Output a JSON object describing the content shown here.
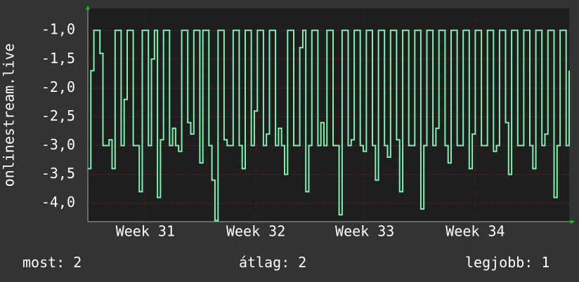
{
  "chart_data": {
    "type": "line",
    "y_label": "onlinestream.live",
    "series": [
      {
        "color": "#7ef0b0",
        "values": [
          -3.4,
          -1.7,
          -1,
          -1,
          -1.4,
          -3,
          -3,
          -2.9,
          -3.4,
          -1,
          -1,
          -3,
          -2.2,
          -1,
          -1,
          -3,
          -3,
          -3.8,
          -1,
          -1,
          -3,
          -1.5,
          -1,
          -3.9,
          -2.9,
          -1,
          -1,
          -3,
          -2.7,
          -3,
          -3.1,
          -1,
          -1,
          -2.6,
          -2.8,
          -1,
          -1,
          -3.3,
          -1,
          -1,
          -3,
          -3.6,
          -4.3,
          -1,
          -1,
          -2.9,
          -3,
          -3,
          -1,
          -1,
          -3,
          -3.4,
          -1,
          -1,
          -3,
          -2.4,
          -1,
          -1,
          -3,
          -2.8,
          -1,
          -1,
          -3,
          -2.7,
          -3,
          -3.5,
          -1,
          -1,
          -3,
          -3,
          -1.3,
          -1,
          -3.8,
          -3,
          -1,
          -1,
          -3,
          -2.6,
          -3,
          -1,
          -1,
          -3,
          -3,
          -4.2,
          -1,
          -1,
          -3,
          -2.9,
          -1,
          -1,
          -3,
          -3.1,
          -1,
          -1,
          -3,
          -3.6,
          -1,
          -1,
          -3,
          -3.2,
          -1,
          -1,
          -2.9,
          -3.8,
          -1,
          -1,
          -3,
          -3,
          -1,
          -1,
          -4.1,
          -3,
          -1,
          -1,
          -3,
          -2.7,
          -1,
          -1,
          -3,
          -3.3,
          -1,
          -1,
          -3,
          -3,
          -1,
          -1,
          -3.4,
          -2.8,
          -1,
          -1,
          -3,
          -3,
          -1,
          -1,
          -3.1,
          -3,
          -1,
          -1,
          -2.6,
          -3.5,
          -1,
          -1,
          -3,
          -3,
          -1,
          -1,
          -3,
          -3.4,
          -1,
          -1,
          -3,
          -2.8,
          -1,
          -1,
          -3.9,
          -3,
          -1,
          -1,
          -3,
          -1.7
        ]
      }
    ],
    "ylim": [
      -4.32,
      -0.62
    ],
    "yticks": [
      {
        "value": -4,
        "label": "-4,0"
      },
      {
        "value": -3.5,
        "label": "-3,5"
      },
      {
        "value": -3,
        "label": "-3,0"
      },
      {
        "value": -2.5,
        "label": "-2,5"
      },
      {
        "value": -2,
        "label": "-2,0"
      },
      {
        "value": -1.5,
        "label": "-1,5"
      },
      {
        "value": -1,
        "label": "-1,0"
      }
    ],
    "xticks": [
      {
        "value": 19,
        "label": "Week 31"
      },
      {
        "value": 55.5,
        "label": "Week 32"
      },
      {
        "value": 91.5,
        "label": "Week 33"
      },
      {
        "value": 128,
        "label": "Week 34"
      }
    ],
    "grid": true,
    "legend": [
      {
        "label": "most:",
        "value": 2
      },
      {
        "label": "átlag:",
        "value": 2
      },
      {
        "label": "legjobb:",
        "value": 1
      }
    ]
  }
}
